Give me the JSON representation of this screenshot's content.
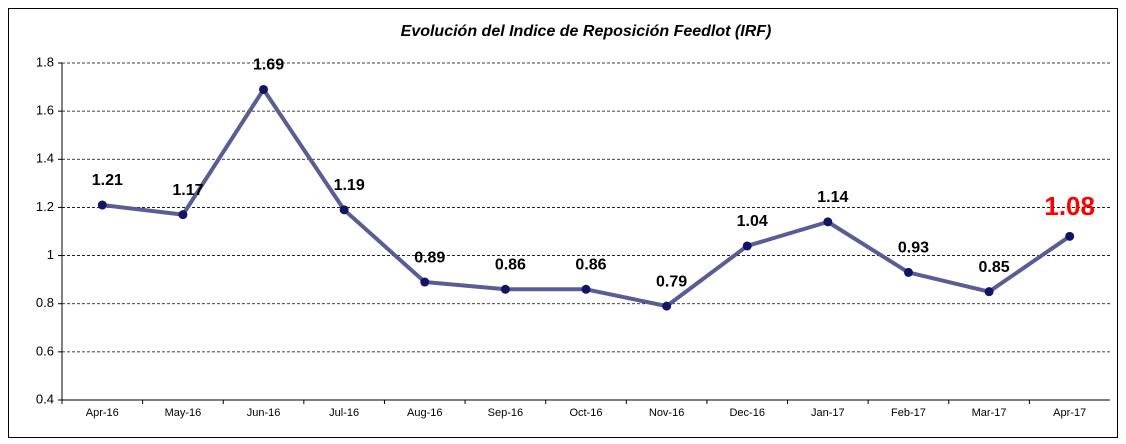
{
  "chart_data": {
    "type": "line",
    "title": "Evolución del Indice de Reposición Feedlot (IRF)",
    "categories": [
      "Apr-16",
      "May-16",
      "Jun-16",
      "Jul-16",
      "Aug-16",
      "Sep-16",
      "Oct-16",
      "Nov-16",
      "Dec-16",
      "Jan-17",
      "Feb-17",
      "Mar-17",
      "Apr-17"
    ],
    "series": [
      {
        "name": "IRF",
        "color": "#5b5b95",
        "marker_color": "#141466",
        "values": [
          1.21,
          1.17,
          1.69,
          1.19,
          0.89,
          0.86,
          0.86,
          0.79,
          1.04,
          1.14,
          0.93,
          0.85,
          1.08
        ]
      }
    ],
    "ylim": [
      0.4,
      1.8
    ],
    "yticks": [
      0.4,
      0.6,
      0.8,
      1,
      1.2,
      1.4,
      1.6,
      1.8
    ],
    "grid": true,
    "label_highlight": {
      "index": 12,
      "color": "#ff0000"
    }
  }
}
